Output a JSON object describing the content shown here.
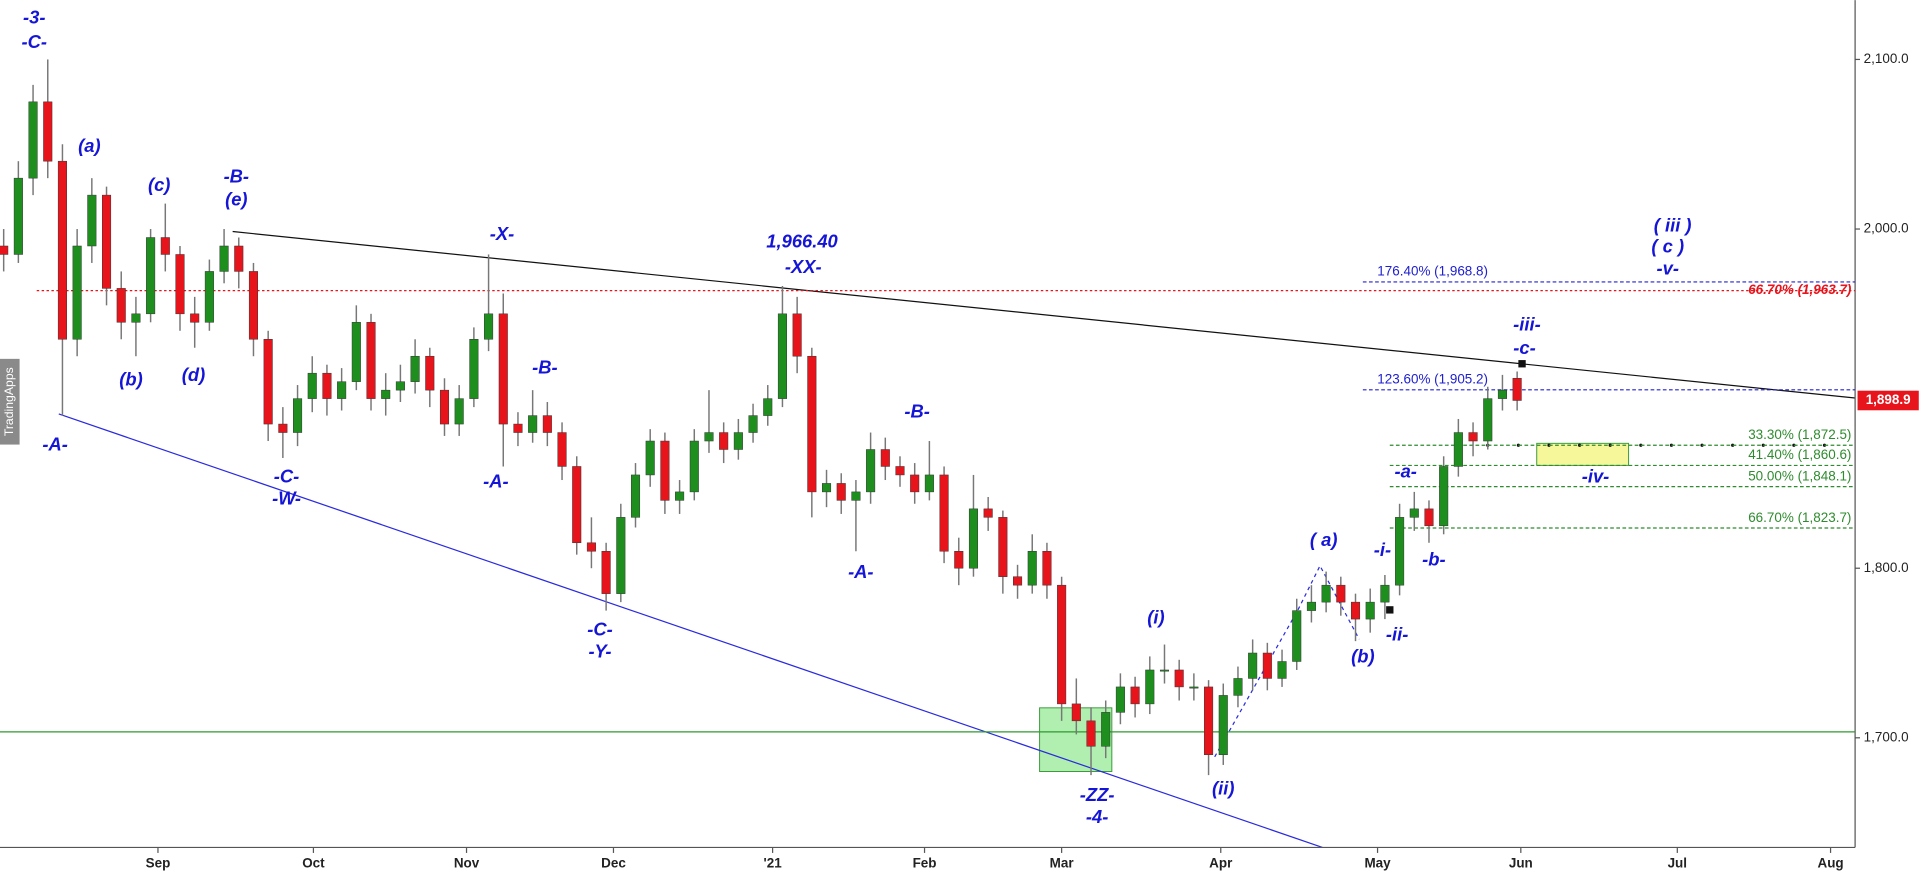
{
  "chart_data": {
    "type": "candlestick",
    "up_color": "#1e8f1e",
    "down_color": "#e8141c",
    "xlim": [
      -0.25,
      126
    ],
    "ylim": [
      1635,
      2135
    ],
    "yticks": [
      {
        "value": 1700,
        "label": "1,700.0"
      },
      {
        "value": 1800,
        "label": "1,800.0"
      },
      {
        "value": 2000,
        "label": "2,000.0"
      },
      {
        "value": 2100,
        "label": "2,100.0"
      }
    ],
    "xticks": [
      {
        "value": 10.5,
        "label": "Sep"
      },
      {
        "value": 21.08,
        "label": "Oct"
      },
      {
        "value": 31.5,
        "label": "Nov"
      },
      {
        "value": 41.5,
        "label": "Dec"
      },
      {
        "value": 52.33,
        "label": "'21"
      },
      {
        "value": 62.67,
        "label": "Feb"
      },
      {
        "value": 72,
        "label": "Mar"
      },
      {
        "value": 82.83,
        "label": "Apr"
      },
      {
        "value": 93.5,
        "label": "May"
      },
      {
        "value": 103.25,
        "label": "Jun"
      },
      {
        "value": 113.9,
        "label": "Jul"
      },
      {
        "value": 124.33,
        "label": "Aug"
      }
    ],
    "ohlc": [
      [
        1990,
        2000,
        1975,
        1985
      ],
      [
        1985,
        2040,
        1980,
        2030
      ],
      [
        2030,
        2085,
        2020,
        2075
      ],
      [
        2075,
        2100,
        2030,
        2040
      ],
      [
        2040,
        2050,
        1890,
        1935
      ],
      [
        1935,
        2000,
        1925,
        1990
      ],
      [
        1990,
        2030,
        1980,
        2020
      ],
      [
        2020,
        2025,
        1955,
        1965
      ],
      [
        1965,
        1975,
        1935,
        1945
      ],
      [
        1945,
        1960,
        1925,
        1950
      ],
      [
        1950,
        2000,
        1945,
        1995
      ],
      [
        1995,
        2015,
        1975,
        1985
      ],
      [
        1985,
        1990,
        1940,
        1950
      ],
      [
        1950,
        1960,
        1930,
        1945
      ],
      [
        1945,
        1982,
        1940,
        1975
      ],
      [
        1975,
        2000,
        1968,
        1990
      ],
      [
        1990,
        1995,
        1965,
        1975
      ],
      [
        1975,
        1980,
        1925,
        1935
      ],
      [
        1935,
        1940,
        1875,
        1885
      ],
      [
        1885,
        1895,
        1865,
        1880
      ],
      [
        1880,
        1908,
        1872,
        1900
      ],
      [
        1900,
        1925,
        1892,
        1915
      ],
      [
        1915,
        1920,
        1890,
        1900
      ],
      [
        1900,
        1918,
        1893,
        1910
      ],
      [
        1910,
        1955,
        1905,
        1945
      ],
      [
        1945,
        1950,
        1893,
        1900
      ],
      [
        1900,
        1915,
        1890,
        1905
      ],
      [
        1905,
        1920,
        1898,
        1910
      ],
      [
        1910,
        1935,
        1903,
        1925
      ],
      [
        1925,
        1930,
        1895,
        1905
      ],
      [
        1905,
        1912,
        1878,
        1885
      ],
      [
        1885,
        1908,
        1878,
        1900
      ],
      [
        1900,
        1942,
        1895,
        1935
      ],
      [
        1935,
        1985,
        1928,
        1950
      ],
      [
        1950,
        1962,
        1860,
        1885
      ],
      [
        1885,
        1892,
        1872,
        1880
      ],
      [
        1880,
        1905,
        1874,
        1890
      ],
      [
        1890,
        1898,
        1872,
        1880
      ],
      [
        1880,
        1886,
        1852,
        1860
      ],
      [
        1860,
        1866,
        1808,
        1815
      ],
      [
        1815,
        1830,
        1800,
        1810
      ],
      [
        1810,
        1815,
        1775,
        1785
      ],
      [
        1785,
        1838,
        1780,
        1830
      ],
      [
        1830,
        1862,
        1824,
        1855
      ],
      [
        1855,
        1882,
        1848,
        1875
      ],
      [
        1875,
        1880,
        1832,
        1840
      ],
      [
        1840,
        1852,
        1832,
        1845
      ],
      [
        1845,
        1882,
        1840,
        1875
      ],
      [
        1875,
        1905,
        1868,
        1880
      ],
      [
        1880,
        1886,
        1862,
        1870
      ],
      [
        1870,
        1888,
        1864,
        1880
      ],
      [
        1880,
        1897,
        1874,
        1890
      ],
      [
        1890,
        1908,
        1884,
        1900
      ],
      [
        1900,
        1966.4,
        1895,
        1950
      ],
      [
        1950,
        1960,
        1915,
        1925
      ],
      [
        1925,
        1930,
        1830,
        1845
      ],
      [
        1845,
        1858,
        1836,
        1850
      ],
      [
        1850,
        1856,
        1832,
        1840
      ],
      [
        1840,
        1852,
        1810,
        1845
      ],
      [
        1845,
        1880,
        1838,
        1870
      ],
      [
        1870,
        1877,
        1852,
        1860
      ],
      [
        1860,
        1866,
        1848,
        1855
      ],
      [
        1855,
        1862,
        1838,
        1845
      ],
      [
        1845,
        1875,
        1840,
        1855
      ],
      [
        1855,
        1860,
        1803,
        1810
      ],
      [
        1810,
        1818,
        1790,
        1800
      ],
      [
        1800,
        1855,
        1795,
        1835
      ],
      [
        1835,
        1842,
        1822,
        1830
      ],
      [
        1830,
        1834,
        1785,
        1795
      ],
      [
        1795,
        1802,
        1782,
        1790
      ],
      [
        1790,
        1820,
        1785,
        1810
      ],
      [
        1810,
        1815,
        1782,
        1790
      ],
      [
        1790,
        1795,
        1710,
        1720
      ],
      [
        1720,
        1735,
        1702,
        1710
      ],
      [
        1710,
        1718,
        1678,
        1695
      ],
      [
        1695,
        1722,
        1688,
        1715
      ],
      [
        1715,
        1738,
        1708,
        1730
      ],
      [
        1730,
        1736,
        1712,
        1720
      ],
      [
        1720,
        1748,
        1714,
        1740
      ],
      [
        1740,
        1755,
        1732,
        1740
      ],
      [
        1740,
        1746,
        1722,
        1730
      ],
      [
        1730,
        1738,
        1722,
        1730
      ],
      [
        1730,
        1734,
        1678,
        1690
      ],
      [
        1690,
        1732,
        1684,
        1725
      ],
      [
        1725,
        1742,
        1718,
        1735
      ],
      [
        1735,
        1758,
        1728,
        1750
      ],
      [
        1750,
        1756,
        1728,
        1735
      ],
      [
        1735,
        1752,
        1730,
        1745
      ],
      [
        1745,
        1782,
        1740,
        1775
      ],
      [
        1775,
        1790,
        1768,
        1780
      ],
      [
        1780,
        1798,
        1774,
        1790
      ],
      [
        1790,
        1795,
        1772,
        1780
      ],
      [
        1780,
        1785,
        1757,
        1770
      ],
      [
        1770,
        1788,
        1762,
        1780
      ],
      [
        1780,
        1796,
        1770,
        1790
      ],
      [
        1790,
        1838,
        1784,
        1830
      ],
      [
        1830,
        1845,
        1822,
        1835
      ],
      [
        1835,
        1840,
        1815,
        1825
      ],
      [
        1825,
        1866,
        1820,
        1860
      ],
      [
        1860,
        1888,
        1854,
        1880
      ],
      [
        1880,
        1886,
        1866,
        1875
      ],
      [
        1875,
        1907,
        1870,
        1900
      ],
      [
        1900,
        1914,
        1893,
        1905
      ],
      [
        1912,
        1916,
        1893,
        1898.9
      ]
    ],
    "last_price": {
      "value": 1898.9,
      "label": "1,898.9"
    },
    "support_level": 1703.5,
    "fib_levels": [
      {
        "label": "176.40% (1,968.8)",
        "value": 1968.8,
        "color": "#2020d0"
      },
      {
        "label": "66.70% (1,963.7)",
        "value": 1963.7,
        "color": "#e8141c"
      },
      {
        "label": "123.60% (1,905.2)",
        "value": 1905.2,
        "color": "#2020d0"
      },
      {
        "label": "33.30% (1,872.5)",
        "value": 1872.5,
        "color": "#2e8b2e"
      },
      {
        "label": "41.40% (1,860.6)",
        "value": 1860.6,
        "color": "#2e8b2e"
      },
      {
        "label": "50.00% (1,848.1)",
        "value": 1848.1,
        "color": "#2e8b2e"
      },
      {
        "label": "66.70% (1,823.7)",
        "value": 1823.7,
        "color": "#2e8b2e"
      }
    ],
    "annotations": [
      "-3-",
      "-C-",
      "(a)",
      "(b)",
      "(c)",
      "(d)",
      "-B-",
      "(e)",
      "-A-",
      "-C-",
      "-W-",
      "-X-",
      "-B-",
      "-A-",
      "-C-",
      "-Y-",
      "1,966.40",
      "-XX-",
      "-B-",
      "-A-",
      "(i)",
      "(ii)",
      "-ZZ-",
      "-4-",
      "( a)",
      "(b)",
      "-i-",
      "-ii-",
      "-a-",
      "-b-",
      "-iii-",
      "-c-",
      "( iii )",
      "( c )",
      "-v-",
      "-iv-"
    ],
    "watermark": "TradingApps"
  }
}
